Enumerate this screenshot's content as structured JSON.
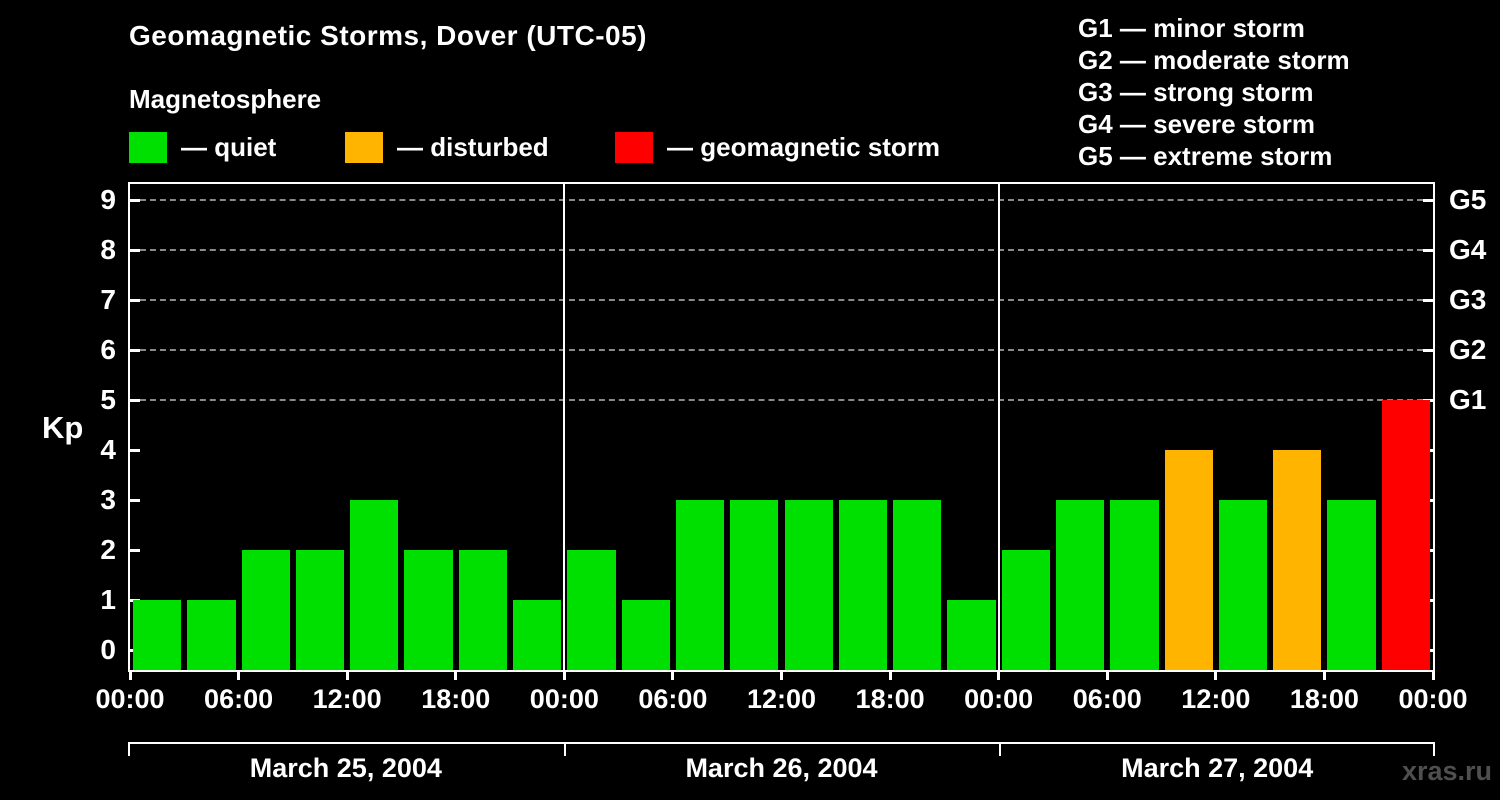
{
  "header": {
    "title": "Geomagnetic Storms, Dover (UTC-05)",
    "subtitle": "Magnetosphere"
  },
  "legend": {
    "quiet": {
      "label": "— quiet",
      "color": "#00e000"
    },
    "disturbed": {
      "label": "— disturbed",
      "color": "#ffb400"
    },
    "storm": {
      "label": "— geomagnetic storm",
      "color": "#ff0000"
    }
  },
  "g_scale_legend": [
    "G1 — minor storm",
    "G2 — moderate storm",
    "G3 — strong storm",
    "G4 — severe storm",
    "G5 — extreme storm"
  ],
  "watermark": "xras.ru",
  "chart_data": {
    "type": "bar",
    "title": "Geomagnetic Storms, Dover (UTC-05)",
    "ylabel": "Kp",
    "ylim": [
      0,
      9.5
    ],
    "grid": "dashed horizontal lines at Kp 5-9 only",
    "legend_position": "top",
    "yticks": [
      0,
      1,
      2,
      3,
      4,
      5,
      6,
      7,
      8,
      9
    ],
    "g_levels": [
      {
        "label": "G1",
        "kp": 5
      },
      {
        "label": "G2",
        "kp": 6
      },
      {
        "label": "G3",
        "kp": 7
      },
      {
        "label": "G4",
        "kp": 8
      },
      {
        "label": "G5",
        "kp": 9
      }
    ],
    "x_tick_labels": [
      "00:00",
      "06:00",
      "12:00",
      "18:00",
      "00:00",
      "06:00",
      "12:00",
      "18:00",
      "00:00",
      "06:00",
      "12:00",
      "18:00",
      "00:00"
    ],
    "bar_interval_hours": 3,
    "days": [
      {
        "date": "March 25, 2004",
        "values": [
          1,
          1,
          2,
          2,
          3,
          2,
          2,
          1
        ]
      },
      {
        "date": "March 26, 2004",
        "values": [
          2,
          1,
          3,
          3,
          3,
          3,
          3,
          1
        ]
      },
      {
        "date": "March 27, 2004",
        "values": [
          2,
          3,
          3,
          4,
          3,
          4,
          3,
          5
        ]
      }
    ],
    "thresholds": {
      "disturbed": 4,
      "storm": 5
    },
    "colors": {
      "quiet": "#00e000",
      "disturbed": "#ffb400",
      "storm": "#ff0000"
    }
  }
}
